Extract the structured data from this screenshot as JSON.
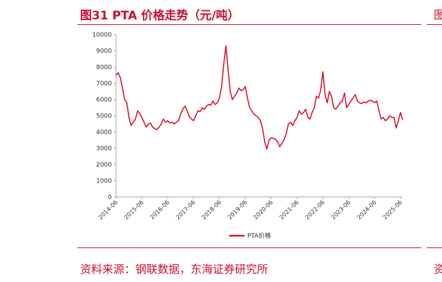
{
  "header": {
    "title": "图31  PTA 价格走势（元/吨）"
  },
  "footer": {
    "source": "资料来源：钢联数据，东海证券研究所"
  },
  "edge_fragments": {
    "top": "图",
    "bottom": "资"
  },
  "colors": {
    "accent": "#c8102e",
    "series": "#d7132a",
    "axis": "#a6a6a6"
  },
  "chart_data": {
    "type": "line",
    "title": "",
    "xlabel": "",
    "ylabel": "",
    "ylim": [
      0,
      10000
    ],
    "yticks": [
      0,
      1000,
      2000,
      3000,
      4000,
      5000,
      6000,
      7000,
      8000,
      9000,
      10000
    ],
    "xlim": [
      "2014-06",
      "2025-07"
    ],
    "xticks": [
      "2014-06",
      "2015-06",
      "2016-06",
      "2017-06",
      "2018-06",
      "2019-06",
      "2020-06",
      "2021-06",
      "2022-06",
      "2023-06",
      "2024-06",
      "2025-06"
    ],
    "legend": "bottom-center",
    "series": [
      {
        "name": "PTA价格",
        "points": [
          [
            "2014-06",
            7500
          ],
          [
            "2014-07",
            7650
          ],
          [
            "2014-08",
            7350
          ],
          [
            "2014-09",
            6700
          ],
          [
            "2014-10",
            6000
          ],
          [
            "2014-11",
            5800
          ],
          [
            "2014-12",
            4900
          ],
          [
            "2015-01",
            4400
          ],
          [
            "2015-02",
            4600
          ],
          [
            "2015-03",
            4800
          ],
          [
            "2015-04",
            5300
          ],
          [
            "2015-05",
            5150
          ],
          [
            "2015-06",
            4900
          ],
          [
            "2015-07",
            4600
          ],
          [
            "2015-08",
            4300
          ],
          [
            "2015-09",
            4500
          ],
          [
            "2015-10",
            4550
          ],
          [
            "2015-11",
            4300
          ],
          [
            "2015-12",
            4200
          ],
          [
            "2016-01",
            4150
          ],
          [
            "2016-02",
            4300
          ],
          [
            "2016-03",
            4500
          ],
          [
            "2016-04",
            4800
          ],
          [
            "2016-05",
            4600
          ],
          [
            "2016-06",
            4700
          ],
          [
            "2016-07",
            4550
          ],
          [
            "2016-08",
            4600
          ],
          [
            "2016-09",
            4500
          ],
          [
            "2016-10",
            4600
          ],
          [
            "2016-11",
            4700
          ],
          [
            "2016-12",
            5100
          ],
          [
            "2017-01",
            5400
          ],
          [
            "2017-02",
            5600
          ],
          [
            "2017-03",
            5300
          ],
          [
            "2017-04",
            4950
          ],
          [
            "2017-05",
            4800
          ],
          [
            "2017-06",
            4700
          ],
          [
            "2017-07",
            5000
          ],
          [
            "2017-08",
            5300
          ],
          [
            "2017-09",
            5250
          ],
          [
            "2017-10",
            5500
          ],
          [
            "2017-11",
            5400
          ],
          [
            "2017-12",
            5600
          ],
          [
            "2018-01",
            5700
          ],
          [
            "2018-02",
            5650
          ],
          [
            "2018-03",
            5900
          ],
          [
            "2018-04",
            5700
          ],
          [
            "2018-05",
            5800
          ],
          [
            "2018-06",
            6100
          ],
          [
            "2018-07",
            6800
          ],
          [
            "2018-08",
            8200
          ],
          [
            "2018-09",
            9300
          ],
          [
            "2018-10",
            7800
          ],
          [
            "2018-11",
            6500
          ],
          [
            "2018-12",
            6000
          ],
          [
            "2019-01",
            6200
          ],
          [
            "2019-02",
            6400
          ],
          [
            "2019-03",
            6700
          ],
          [
            "2019-04",
            6550
          ],
          [
            "2019-05",
            6600
          ],
          [
            "2019-06",
            6800
          ],
          [
            "2019-07",
            6100
          ],
          [
            "2019-08",
            5500
          ],
          [
            "2019-09",
            5300
          ],
          [
            "2019-10",
            5100
          ],
          [
            "2019-11",
            5000
          ],
          [
            "2019-12",
            4900
          ],
          [
            "2020-01",
            4700
          ],
          [
            "2020-02",
            4200
          ],
          [
            "2020-03",
            3400
          ],
          [
            "2020-04",
            2950
          ],
          [
            "2020-05",
            3500
          ],
          [
            "2020-06",
            3650
          ],
          [
            "2020-07",
            3600
          ],
          [
            "2020-08",
            3550
          ],
          [
            "2020-09",
            3400
          ],
          [
            "2020-10",
            3100
          ],
          [
            "2020-11",
            3300
          ],
          [
            "2020-12",
            3550
          ],
          [
            "2021-01",
            3900
          ],
          [
            "2021-02",
            4500
          ],
          [
            "2021-03",
            4600
          ],
          [
            "2021-04",
            4400
          ],
          [
            "2021-05",
            4700
          ],
          [
            "2021-06",
            4900
          ],
          [
            "2021-07",
            5300
          ],
          [
            "2021-08",
            5100
          ],
          [
            "2021-09",
            5200
          ],
          [
            "2021-10",
            5400
          ],
          [
            "2021-11",
            4900
          ],
          [
            "2021-12",
            4800
          ],
          [
            "2022-01",
            5200
          ],
          [
            "2022-02",
            5500
          ],
          [
            "2022-03",
            6200
          ],
          [
            "2022-04",
            6100
          ],
          [
            "2022-05",
            6600
          ],
          [
            "2022-06",
            7700
          ],
          [
            "2022-07",
            6300
          ],
          [
            "2022-08",
            5800
          ],
          [
            "2022-09",
            6500
          ],
          [
            "2022-10",
            6200
          ],
          [
            "2022-11",
            5500
          ],
          [
            "2022-12",
            5400
          ],
          [
            "2023-01",
            5600
          ],
          [
            "2023-02",
            5800
          ],
          [
            "2023-03",
            5900
          ],
          [
            "2023-04",
            6400
          ],
          [
            "2023-05",
            5500
          ],
          [
            "2023-06",
            5700
          ],
          [
            "2023-07",
            5900
          ],
          [
            "2023-08",
            6100
          ],
          [
            "2023-09",
            6300
          ],
          [
            "2023-10",
            5900
          ],
          [
            "2023-11",
            5800
          ],
          [
            "2023-12",
            5750
          ],
          [
            "2024-01",
            5850
          ],
          [
            "2024-02",
            5800
          ],
          [
            "2024-03",
            5900
          ],
          [
            "2024-04",
            5950
          ],
          [
            "2024-05",
            5900
          ],
          [
            "2024-06",
            5800
          ],
          [
            "2024-07",
            5900
          ],
          [
            "2024-08",
            5300
          ],
          [
            "2024-09",
            4800
          ],
          [
            "2024-10",
            4900
          ],
          [
            "2024-11",
            4700
          ],
          [
            "2024-12",
            4800
          ],
          [
            "2025-01",
            5000
          ],
          [
            "2025-02",
            4900
          ],
          [
            "2025-03",
            4900
          ],
          [
            "2025-04",
            4250
          ],
          [
            "2025-05",
            4700
          ],
          [
            "2025-06",
            5200
          ],
          [
            "2025-07",
            4750
          ]
        ]
      }
    ]
  }
}
